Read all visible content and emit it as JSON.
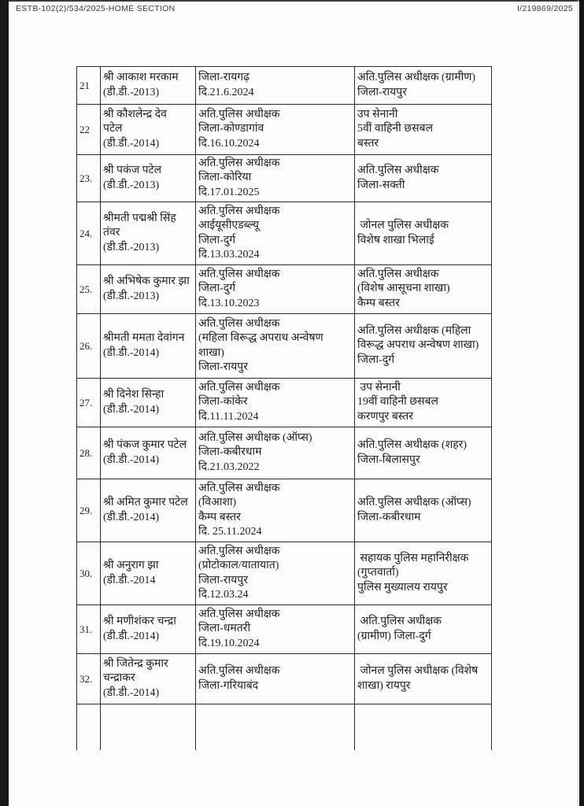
{
  "header": {
    "left": "ESTB-102(2)/534/2025-HOME SECTION",
    "right": "I/219869/2025"
  },
  "colors": {
    "page_bg": "#fcfcfc",
    "scan_edge": "#181818",
    "table_line": "#2b2b2b",
    "text": "#1d1d1d",
    "header_text": "#3b3b3b"
  },
  "table": {
    "rows": [
      {
        "no": "21",
        "name": "श्री आकाश मरकाम\n(डी.डी.-2013)",
        "from": "जिला-रायगढ़\nदि.21.6.2024",
        "to": "अति.पुलिस अधीक्षक (ग्रामीण)\nजिला-रायपुर"
      },
      {
        "no": "22",
        "name": "श्री कौशलेन्द्र देव\nपटेल\n(डी.डी.-2014)",
        "from": "अति.पुलिस अधीक्षक\nजिला-कोण्डागांव\nदि.16.10.2024",
        "to": "उप सेनानी\n5वीं वाहिनी छसबल\nबस्तर"
      },
      {
        "no": "23.",
        "name": "श्री पकंज पटेल\n(डी.डी.-2013)",
        "from": "अति.पुलिस अधीक्षक\nजिला-कोरिया\nदि.17.01.2025",
        "to": "अति.पुलिस अधीक्षक\nजिला-सक्ती"
      },
      {
        "no": "24.",
        "name": "श्रीमती पद्मश्री सिंह\nतंवर\n(डी.डी.-2013)",
        "from": "अति.पुलिस अधीक्षक\nआईयूसीएडब्ल्यू\nजिला-दुर्ग\nदि.13.03.2024",
        "to": " जोनल पुलिस अधीक्षक\nविशेष शाखा भिलाई"
      },
      {
        "no": "25.",
        "name": "श्री अभिषेक कुमार झा\n(डी.डी.-2013)",
        "from": "अति.पुलिस अधीक्षक\nजिला-दुर्ग\nदि.13.10.2023",
        "to": "अति.पुलिस अधीक्षक\n(विशेष आसूचना शाखा)\nकैम्प बस्तर"
      },
      {
        "no": "26.",
        "name": "श्रीमती ममता देवांगन\n(डी.डी.-2014)",
        "from": "अति.पुलिस अधीक्षक\n(महिला विरूद्ध अपराध अन्वेषण\nशाखा)\nजिला-रायपुर",
        "to": "अति.पुलिस अधीक्षक (महिला\nविरूद्ध अपराध अन्वेषण शाखा)\nजिला-दुर्ग"
      },
      {
        "no": "27.",
        "name": "श्री दिनेश सिन्हा\n(डी.डी.-2014)",
        "from": "अति.पुलिस अधीक्षक\nजिला-कांकेर\nदि.11.11.2024",
        "to": " उप सेनानी\n19वीं वाहिनी छसबल\nकरणपुर बस्तर"
      },
      {
        "no": "28.",
        "name": "श्री पंकज कुमार पटेल\n(डी.डी.-2014)",
        "from": "अति.पुलिस अधीक्षक (ऑप्स)\nजिला-कबीरधाम\nदि.21.03.2022",
        "to": "अति.पुलिस अधीक्षक (शहर)\nजिला-बिलासपुर"
      },
      {
        "no": "29.",
        "name": "श्री अमित कुमार पटेल\n(डी.डी.-2014)",
        "from": "अति.पुलिस अधीक्षक\n(विआशा)\nकैम्प बस्तर\nदि. 25.11.2024",
        "to": "अति.पुलिस अधीक्षक (ऑप्स)\nजिला-कबीरधाम"
      },
      {
        "no": "30.",
        "name": "श्री अनुराग झा\n(डी.डी.-2014",
        "from": "अति.पुलिस अधीक्षक\n(प्रोटोकाल/यातायात)\nजिला-रायपुर\nदि.12.03.24",
        "to": " सहायक पुलिस महानिरीक्षक\n(गुप्तवार्ता)\nपुलिस मुख्यालय रायपुर"
      },
      {
        "no": "31.",
        "name": "श्री मणीशंकर चन्द्रा\n(डी.डी.-2014)",
        "from": "अति.पुलिस अधीक्षक\nजिला-धमतरी\nदि.19.10.2024",
        "to": " अति.पुलिस अधीक्षक\n(ग्रामीण) जिला-दुर्ग"
      },
      {
        "no": "32.",
        "name": "श्री जितेन्द्र कुमार\nचन्द्राकर\n(डी.डी.-2014)",
        "from": "अति.पुलिस अधीक्षक\nजिला-गरियाबंद",
        "to": " जोनल पुलिस अधीक्षक (विशेष\nशाखा) रायपुर"
      },
      {
        "no": "",
        "name": "",
        "from": "",
        "to": ""
      }
    ]
  }
}
